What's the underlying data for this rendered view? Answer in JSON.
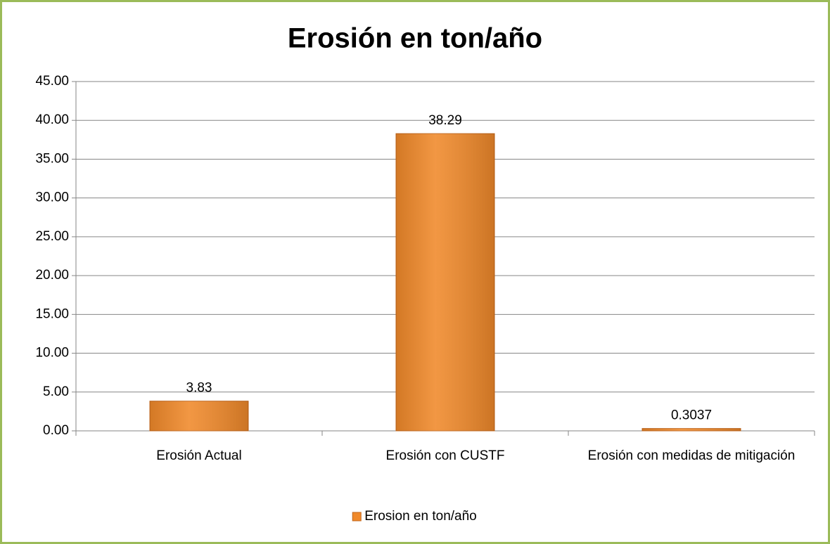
{
  "chart_data": {
    "type": "bar",
    "title": "Erosión en ton/año",
    "categories": [
      "Erosión Actual",
      "Erosión con CUSTF",
      "Erosión con medidas de mitigación"
    ],
    "series": [
      {
        "name": "Erosion en ton/año",
        "color": "#f0892a",
        "values": [
          3.83,
          38.29,
          0.3037
        ]
      }
    ],
    "ylim": [
      0,
      45
    ],
    "yticks": [
      {
        "value": 0,
        "label": "0.00"
      },
      {
        "value": 5,
        "label": "5.00"
      },
      {
        "value": 10,
        "label": "10.00"
      },
      {
        "value": 15,
        "label": "15.00"
      },
      {
        "value": 20,
        "label": "20.00"
      },
      {
        "value": 25,
        "label": "25.00"
      },
      {
        "value": 30,
        "label": "30.00"
      },
      {
        "value": 35,
        "label": "35.00"
      },
      {
        "value": 40,
        "label": "40.00"
      },
      {
        "value": 45,
        "label": "45.00"
      }
    ],
    "grid": true,
    "legend": "bottom"
  }
}
